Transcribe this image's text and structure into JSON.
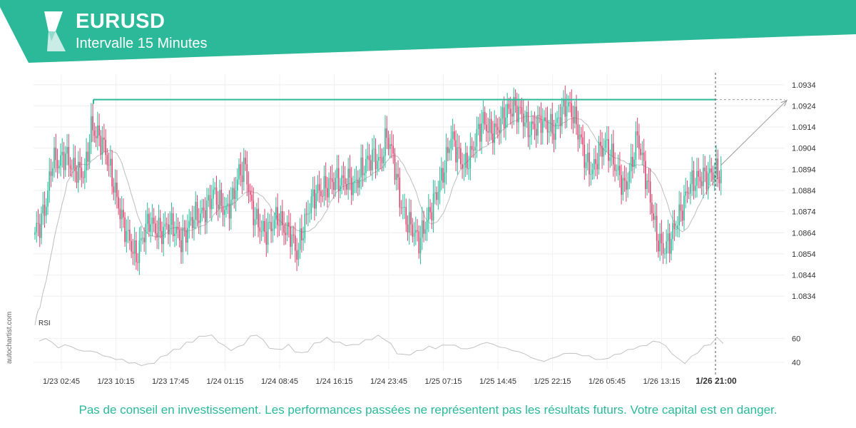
{
  "header": {
    "symbol": "EURUSD",
    "interval": "Intervalle 15 Minutes",
    "brand_color": "#2bb99a"
  },
  "watermark": "autochartist.com",
  "disclaimer": "Pas de conseil en investissement. Les performances passées ne représentent pas les résultats futurs. Votre capital est en danger.",
  "chart_data": {
    "type": "candlestick",
    "y_ticks": [
      "1.0934",
      "1.0924",
      "1.0914",
      "1.0904",
      "1.0894",
      "1.0884",
      "1.0874",
      "1.0864",
      "1.0854",
      "1.0844",
      "1.0834"
    ],
    "ylim": [
      1.0829,
      1.0939
    ],
    "x_ticks": [
      "1/23 02:45",
      "1/23 10:15",
      "1/23 17:45",
      "1/24 01:15",
      "1/24 08:45",
      "1/24 16:15",
      "1/24 23:45",
      "1/25 07:15",
      "1/25 14:45",
      "1/25 22:15",
      "1/26 05:45",
      "1/26 13:15"
    ],
    "current_time_label": "1/26 21:00",
    "resistance_level": 1.0927,
    "forecast_target": 1.0927,
    "candle_colors": {
      "up": "#2bb99a",
      "down": "#e0416b"
    },
    "price_path": [
      1.0863,
      1.0868,
      1.0878,
      1.0899,
      1.0897,
      1.0901,
      1.0895,
      1.0893,
      1.0892,
      1.0914,
      1.091,
      1.0905,
      1.0893,
      1.088,
      1.0868,
      1.086,
      1.0852,
      1.0862,
      1.087,
      1.0866,
      1.0864,
      1.0868,
      1.0866,
      1.086,
      1.0866,
      1.0872,
      1.0872,
      1.0876,
      1.0883,
      1.0878,
      1.0874,
      1.088,
      1.0892,
      1.0895,
      1.0875,
      1.0868,
      1.0864,
      1.0867,
      1.0872,
      1.0866,
      1.0864,
      1.0854,
      1.0866,
      1.0877,
      1.0883,
      1.0884,
      1.0887,
      1.0889,
      1.0888,
      1.0889,
      1.0886,
      1.0893,
      1.0898,
      1.09,
      1.0897,
      1.091,
      1.09,
      1.088,
      1.087,
      1.0866,
      1.086,
      1.0868,
      1.0876,
      1.0885,
      1.0895,
      1.091,
      1.0902,
      1.0895,
      1.09,
      1.091,
      1.0917,
      1.0912,
      1.0912,
      1.0918,
      1.0922,
      1.0923,
      1.092,
      1.0913,
      1.0914,
      1.0917,
      1.0915,
      1.0912,
      1.092,
      1.0925,
      1.092,
      1.091,
      1.0897,
      1.0893,
      1.0902,
      1.0906,
      1.09,
      1.0892,
      1.0885,
      1.0895,
      1.091,
      1.0895,
      1.088,
      1.0862,
      1.0856,
      1.086,
      1.0868,
      1.0876,
      1.0886,
      1.0889,
      1.089,
      1.0891,
      1.0893,
      1.0891
    ],
    "rsi": {
      "label": "RSI",
      "y_ticks": [
        "60",
        "40"
      ],
      "ylim": [
        34,
        70
      ],
      "values": [
        58,
        60,
        57,
        52,
        55,
        53,
        51,
        49,
        50,
        48,
        46,
        44,
        43,
        42,
        40,
        39,
        38,
        38,
        40,
        44,
        47,
        50,
        52,
        56,
        58,
        61,
        63,
        62,
        58,
        53,
        51,
        52,
        56,
        61,
        64,
        58,
        53,
        50,
        52,
        54,
        50,
        47,
        50,
        55,
        58,
        60,
        58,
        56,
        55,
        54,
        56,
        58,
        60,
        62,
        60,
        55,
        48,
        46,
        47,
        49,
        51,
        53,
        52,
        54,
        55,
        54,
        52,
        51,
        53,
        55,
        57,
        55,
        53,
        52,
        50,
        49,
        47,
        44,
        42,
        41,
        43,
        45,
        47,
        48,
        47,
        46,
        45,
        43,
        42,
        44,
        46,
        48,
        50,
        52,
        53,
        55,
        57,
        58,
        53,
        48,
        42,
        40,
        44,
        49,
        53,
        56,
        60,
        57
      ]
    }
  }
}
